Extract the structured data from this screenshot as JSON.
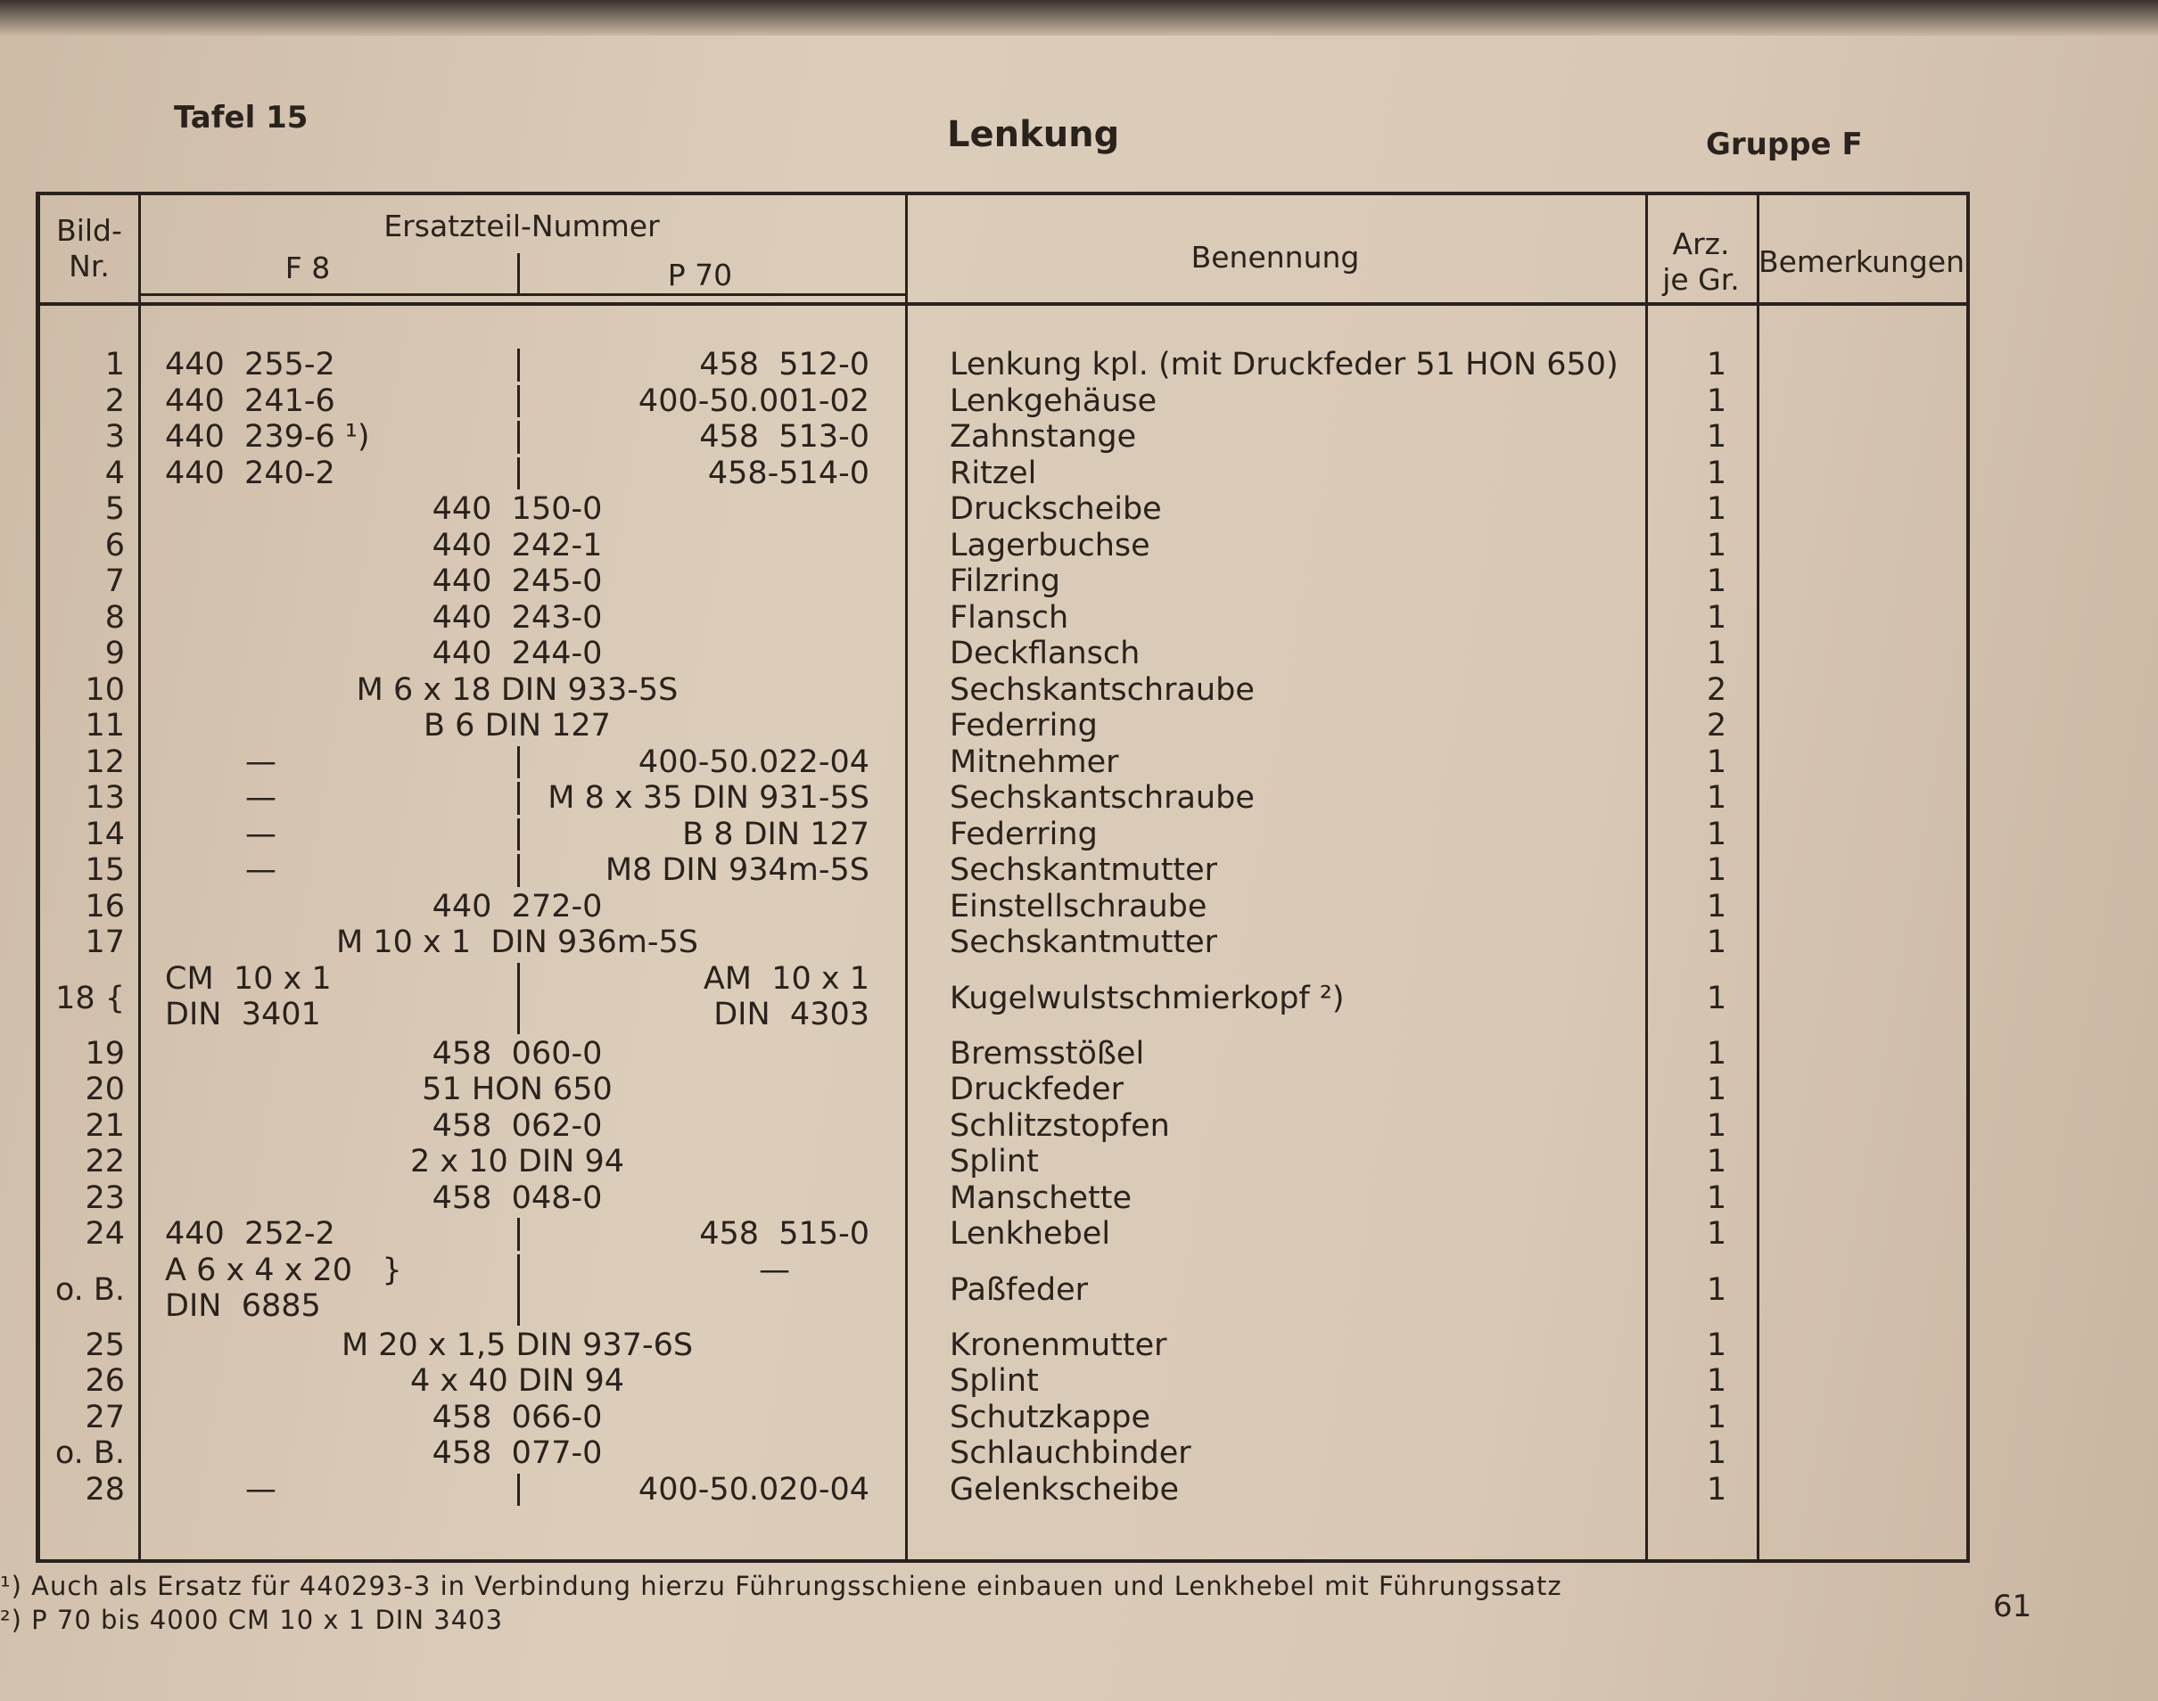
{
  "header": {
    "plate": "Tafel 15",
    "title": "Lenkung",
    "group": "Gruppe F"
  },
  "columns": {
    "bild": "Bild-\nNr.",
    "ersatzteil": "Ersatzteil-Nummer",
    "f8": "F 8",
    "p70": "P 70",
    "benennung": "Benennung",
    "arz": "Arz.\nje Gr.",
    "bemerkungen": "Bemerkungen"
  },
  "rows": [
    {
      "nr": "1",
      "f8": "440  255-2",
      "p70": "458  512-0",
      "name": "Lenkung kpl. (mit Druckfeder 51 HON 650)",
      "qty": "1"
    },
    {
      "nr": "2",
      "f8": "440  241-6",
      "p70": "400-50.001-02",
      "name": "Lenkgehäuse",
      "qty": "1"
    },
    {
      "nr": "3",
      "f8": "440  239-6 ¹)",
      "p70": "458  513-0",
      "name": "Zahnstange",
      "qty": "1"
    },
    {
      "nr": "4",
      "f8": "440  240-2",
      "p70": "458-514-0",
      "name": "Ritzel",
      "qty": "1"
    },
    {
      "nr": "5",
      "common": "440  150-0",
      "name": "Druckscheibe",
      "qty": "1"
    },
    {
      "nr": "6",
      "common": "440  242-1",
      "name": "Lagerbuchse",
      "qty": "1"
    },
    {
      "nr": "7",
      "common": "440  245-0",
      "name": "Filzring",
      "qty": "1"
    },
    {
      "nr": "8",
      "common": "440  243-0",
      "name": "Flansch",
      "qty": "1"
    },
    {
      "nr": "9",
      "common": "440  244-0",
      "name": "Deckflansch",
      "qty": "1"
    },
    {
      "nr": "10",
      "common": "M 6 x 18 DIN 933-5S",
      "name": "Sechskantschraube",
      "qty": "2"
    },
    {
      "nr": "11",
      "common": "B 6 DIN 127",
      "name": "Federring",
      "qty": "2"
    },
    {
      "nr": "12",
      "dash": "—",
      "p70": "400-50.022-04",
      "name": "Mitnehmer",
      "qty": "1"
    },
    {
      "nr": "13",
      "dash": "—",
      "p70": "M 8 x 35 DIN 931-5S",
      "name": "Sechskantschraube",
      "qty": "1"
    },
    {
      "nr": "14",
      "dash": "—",
      "p70": "B 8 DIN 127",
      "name": "Federring",
      "qty": "1"
    },
    {
      "nr": "15",
      "dash": "—",
      "p70": "M8 DIN 934m-5S",
      "name": "Sechskantmutter",
      "qty": "1"
    },
    {
      "nr": "16",
      "common": "440  272-0",
      "name": "Einstellschraube",
      "qty": "1"
    },
    {
      "nr": "17",
      "common": "M 10 x 1  DIN 936m-5S",
      "name": "Sechskantmutter",
      "qty": "1"
    },
    {
      "nr": "18 {",
      "f8": "CM  10 x 1\nDIN  3401",
      "p70": "AM  10 x 1\nDIN  4303",
      "name": "Kugelwulstschmierkopf ²)",
      "qty": "1"
    },
    {
      "nr": "19",
      "common": "458  060-0",
      "name": "Bremsstößel",
      "qty": "1"
    },
    {
      "nr": "20",
      "common": "51 HON 650",
      "name": "Druckfeder",
      "qty": "1"
    },
    {
      "nr": "21",
      "common": "458  062-0",
      "name": "Schlitzstopfen",
      "qty": "1"
    },
    {
      "nr": "22",
      "common": "2 x 10 DIN 94",
      "name": "Splint",
      "qty": "1"
    },
    {
      "nr": "23",
      "common": "458  048-0",
      "name": "Manschette",
      "qty": "1"
    },
    {
      "nr": "24",
      "f8": "440  252-2",
      "p70": "458  515-0",
      "name": "Lenkhebel",
      "qty": "1"
    },
    {
      "nr": "o. B.",
      "f8": "A 6 x 4 x 20   }\nDIN  6885",
      "p70": "—        ",
      "name": "Paßfeder",
      "qty": "1"
    },
    {
      "nr": "25",
      "common": "M 20 x 1,5 DIN 937-6S",
      "name": "Kronenmutter",
      "qty": "1"
    },
    {
      "nr": "26",
      "common": "4 x 40 DIN 94",
      "name": "Splint",
      "qty": "1"
    },
    {
      "nr": "27",
      "common": "458  066-0",
      "name": "Schutzkappe",
      "qty": "1"
    },
    {
      "nr": "o. B.",
      "common": "458  077-0",
      "name": "Schlauchbinder",
      "qty": "1"
    },
    {
      "nr": "28",
      "dash": "—",
      "p70": "400-50.020-04",
      "name": "Gelenkscheibe",
      "qty": "1"
    }
  ],
  "footnotes": [
    "¹) Auch als Ersatz für 440293-3 in Verbindung hierzu Führungsschiene einbauen und Lenkhebel mit Führungssatz",
    "²) P 70 bis 4000 CM 10 x 1 DIN 3403"
  ],
  "page_number": "61"
}
